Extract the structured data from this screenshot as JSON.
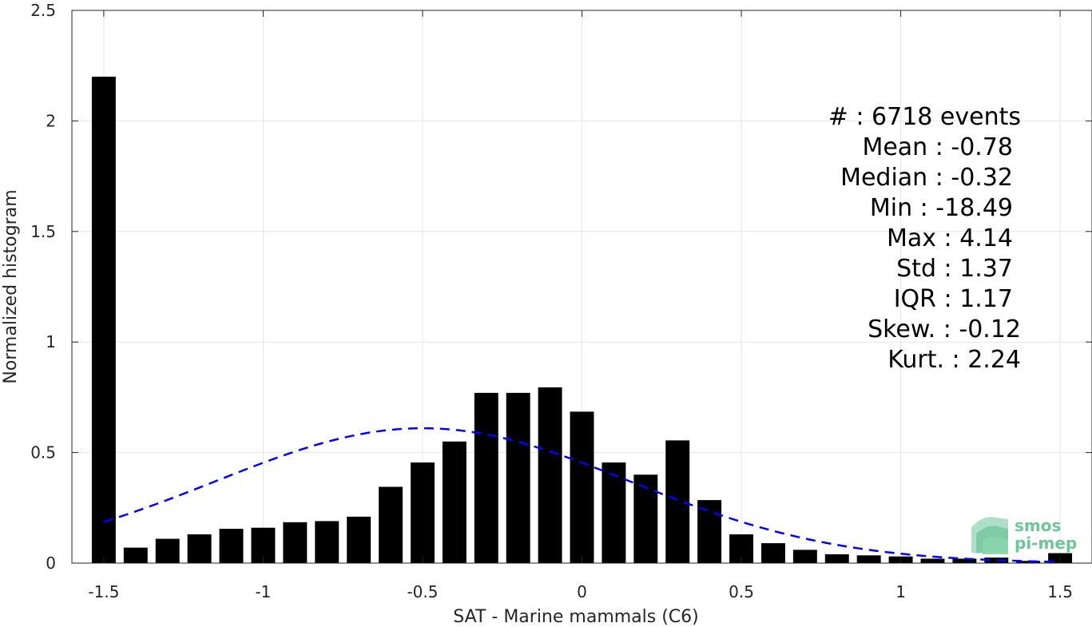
{
  "chart_data": {
    "type": "bar",
    "xlabel": "SAT - Marine mammals (C6)",
    "ylabel": "Normalized histogram",
    "xlim": [
      -1.6,
      1.6
    ],
    "ylim": [
      0,
      2.5
    ],
    "xticks": [
      -1.5,
      -1,
      -0.5,
      0,
      0.5,
      1,
      1.5
    ],
    "xtick_labels": [
      "-1.5",
      "-1",
      "-0.5",
      "0",
      "0.5",
      "1",
      "1.5"
    ],
    "yticks": [
      0,
      0.5,
      1,
      1.5,
      2,
      2.5
    ],
    "ytick_labels": [
      "0",
      "0.5",
      "1",
      "1.5",
      "2",
      "2.5"
    ],
    "grid": true,
    "bar_width": 0.075,
    "bar_color": "#000000",
    "x": [
      -1.5,
      -1.4,
      -1.3,
      -1.2,
      -1.1,
      -1.0,
      -0.9,
      -0.8,
      -0.7,
      -0.6,
      -0.5,
      -0.4,
      -0.3,
      -0.2,
      -0.1,
      0.0,
      0.1,
      0.2,
      0.3,
      0.4,
      0.5,
      0.6,
      0.7,
      0.8,
      0.9,
      1.0,
      1.1,
      1.2,
      1.3,
      1.4,
      1.5
    ],
    "values": [
      2.2,
      0.07,
      0.11,
      0.13,
      0.155,
      0.16,
      0.185,
      0.19,
      0.21,
      0.345,
      0.455,
      0.55,
      0.77,
      0.77,
      0.795,
      0.685,
      0.455,
      0.4,
      0.555,
      0.285,
      0.13,
      0.09,
      0.06,
      0.04,
      0.035,
      0.03,
      0.02,
      0.02,
      0.025,
      0.01,
      0.045
    ],
    "fit_curve": {
      "style": "dashed",
      "color": "#0000ff",
      "mean": -0.5,
      "std": 0.65,
      "peak": 0.61,
      "x_range": [
        -1.5,
        1.5
      ]
    },
    "stats_box": {
      "lines": [
        "#  : 6718 events",
        "Mean : -0.78",
        "Median : -0.32",
        "Min : -18.49",
        "Max : 4.14",
        "Std : 1.37",
        "IQR : 1.17",
        "Skew. : -0.12",
        "Kurt. : 2.24"
      ]
    },
    "logo": {
      "line1": "smos",
      "line2": "pi-mep",
      "color": "#6fc49a"
    }
  }
}
